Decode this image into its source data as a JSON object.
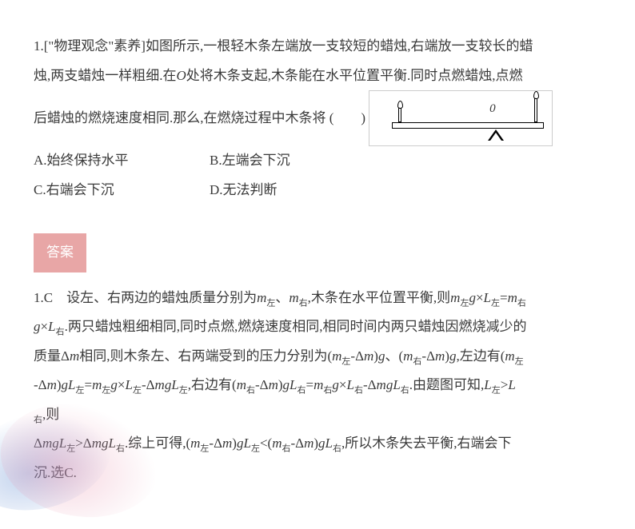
{
  "question": {
    "line1_prefix": "1.[\"物理观念\"素养]如图所示,一根轻木条左端放一支较短的蜡烛,右端放一支较长的蜡",
    "line2": "烛,两支蜡烛一样粗细.在",
    "o_var": "O",
    "line2b": "处将木条支起,木条能在水平位置平衡.同时点燃蜡烛,点燃",
    "line3": "后蜡烛的燃烧速度相同.那么,在燃烧过程中木条将 (　　)",
    "options": {
      "A": "A.始终保持水平",
      "B": "B.左端会下沉",
      "C": "C.右端会下沉",
      "D": "D.无法判断"
    }
  },
  "answer": {
    "tag": "答案",
    "l1a": "1.C　设左、右两边的蜡烛质量分别为",
    "m": "m",
    "zuo": "左",
    "you": "右",
    "dun": "、",
    "l1b": ",木条在水平位置平衡,则",
    "g": "g",
    "x": "×",
    "L": "L",
    "eq": "=",
    "l2": ".两只蜡烛粗细相同,同时点燃,燃烧速度相同,相同时间内两只蜡烛因燃烧减少的",
    "l3a": "质量Δ",
    "l3b": "相同,则木条左、右两端受到的压力分别为(",
    "delta": "-Δ",
    "rp": ")",
    "l3c": ",左边有(",
    "l4mid": ",右边有(",
    "l4end": ".由题图可知,",
    "gt": ">",
    "l5": ",则",
    "l6a": "Δ",
    "l6b": ">Δ",
    "l6c": ".综上可得,(",
    "lt": "<",
    "l6d": ",所以木条失去平衡,右端会下",
    "l7": "沉.选C."
  },
  "diagram": {
    "o_label": "0"
  },
  "style": {
    "bg": "#ffffff",
    "text_color": "#3a3a3a",
    "answer_tag_bg": "#e8a6a6",
    "answer_tag_color": "#ffffff",
    "font_size": 17,
    "line_height": 2.15
  }
}
